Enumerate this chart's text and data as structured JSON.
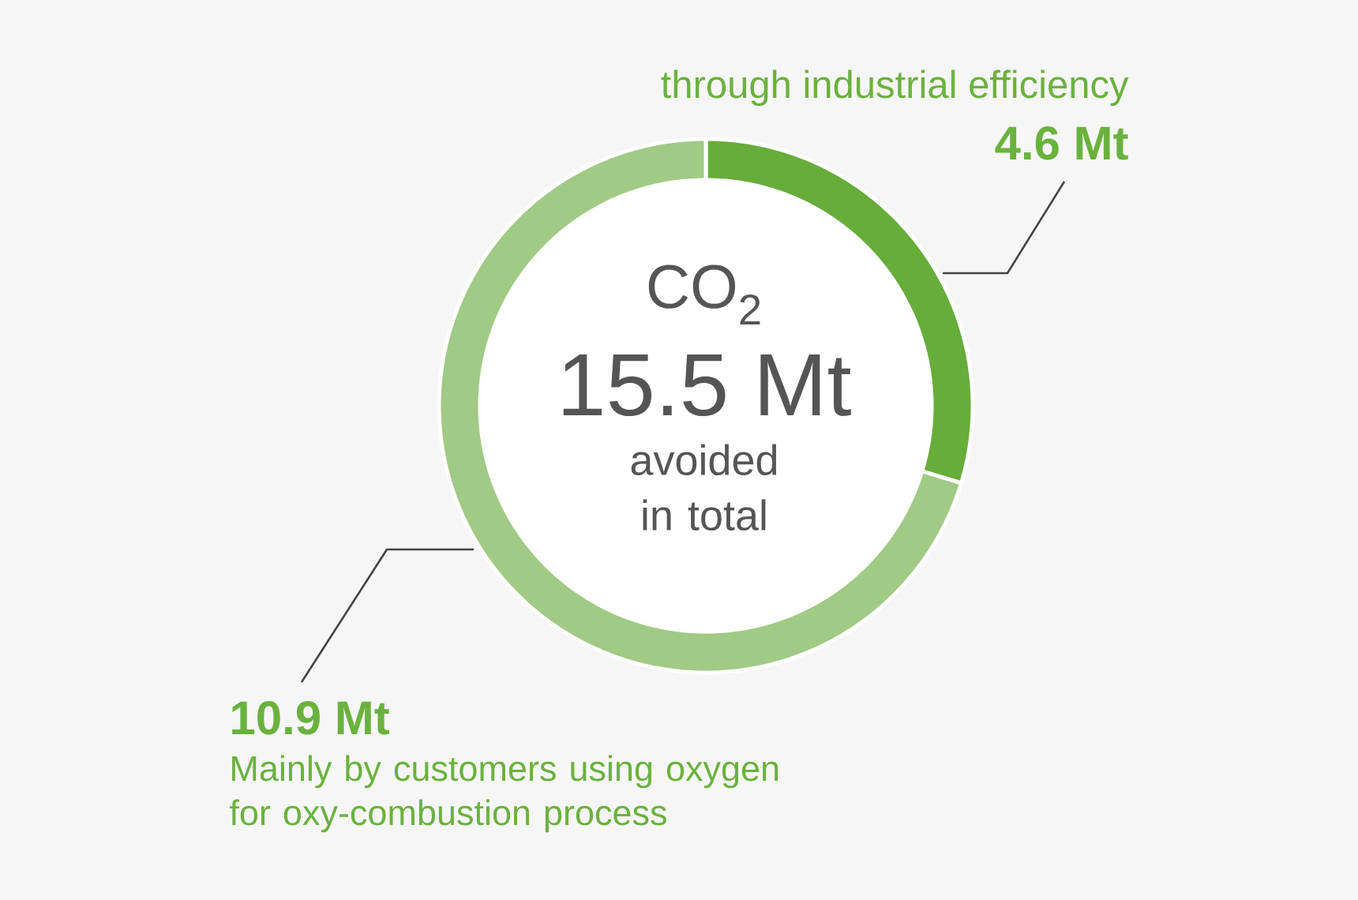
{
  "chart_data": {
    "type": "donut",
    "categories": [
      "through industrial efficiency",
      "Mainly by customers using oxygen for oxy-combustion process"
    ],
    "values": [
      4.6,
      10.9
    ],
    "value_labels": [
      "4.6 Mt",
      "10.9 Mt"
    ],
    "colors": [
      "#66ad3a",
      "#a1ca85"
    ],
    "annotations": [
      "CO$_{2}$",
      "15.5 Mt",
      "avoided in total"
    ]
  }
}
